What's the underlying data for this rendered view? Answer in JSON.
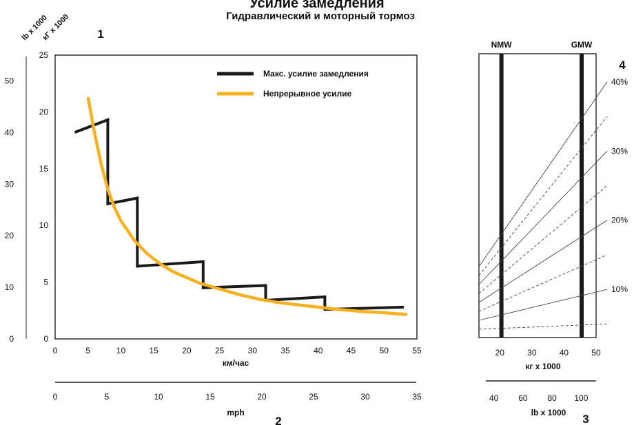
{
  "title": "Усилие замедления",
  "subtitle": "Гидравлический и моторный тормоз",
  "colors": {
    "max": "#1a1a1a",
    "cont": "#f5b120",
    "grade": "#444444"
  },
  "chart_data": [
    {
      "type": "line",
      "callout_top": "1",
      "callout_bottom": "2",
      "y_unit_lb": "lb x 1000",
      "y_unit_kg": "кГ x 1000",
      "xlabel_kmh": "км/час",
      "xlabel_mph": "mph",
      "xlim_kmh": [
        0,
        55
      ],
      "xlim_mph": [
        0,
        35
      ],
      "ylim_kg": [
        0,
        25
      ],
      "ylim_lb": [
        0,
        55
      ],
      "x_ticks_kmh": [
        "0",
        "5",
        "10",
        "15",
        "20",
        "25",
        "30",
        "35",
        "40",
        "45",
        "50",
        "55"
      ],
      "x_ticks_mph": [
        "0",
        "5",
        "10",
        "15",
        "20",
        "25",
        "30",
        "35"
      ],
      "y_ticks_kg": [
        "0",
        "5",
        "10",
        "15",
        "20",
        "25"
      ],
      "y_ticks_lb": [
        "0",
        "10",
        "20",
        "30",
        "40",
        "50"
      ],
      "legend": [
        "Макс. усилие замедления",
        "Непрерывное усилие"
      ],
      "legend_position": "top-right",
      "series": [
        {
          "name": "Макс. усилие замедления",
          "x": [
            3,
            8,
            8,
            12.5,
            12.5,
            22.5,
            22.5,
            32,
            32,
            41,
            41,
            53
          ],
          "y": [
            18.2,
            19.3,
            11.9,
            12.4,
            6.4,
            6.8,
            4.5,
            4.7,
            3.4,
            3.7,
            2.6,
            2.8
          ]
        },
        {
          "name": "Непрерывное усилие",
          "x": [
            5,
            6,
            7,
            8,
            9,
            10,
            12,
            14,
            16,
            18,
            20,
            22,
            25,
            28,
            31,
            34,
            37,
            40,
            43,
            46,
            50,
            53.5
          ],
          "y": [
            21.3,
            18.1,
            15.4,
            13.2,
            11.6,
            10.4,
            8.7,
            7.5,
            6.6,
            5.9,
            5.4,
            4.9,
            4.4,
            3.9,
            3.5,
            3.2,
            3.0,
            2.8,
            2.6,
            2.45,
            2.3,
            2.15
          ]
        }
      ]
    },
    {
      "type": "line",
      "callout_top": "4",
      "callout_bottom": "3",
      "xlabel_kg": "кг x 1000",
      "xlabel_lb": "lb x 1000",
      "x_ticks_kg": [
        "20",
        "30",
        "40",
        "50"
      ],
      "x_ticks_lb": [
        "40",
        "60",
        "80",
        "100"
      ],
      "xlim_kg": [
        13.5,
        50
      ],
      "markers": [
        {
          "label": "NMW",
          "x_kg": 20.5
        },
        {
          "label": "GMW",
          "x_kg": 45.5
        }
      ],
      "grades": [
        {
          "label": "10%",
          "style": "solid"
        },
        {
          "label": "20%",
          "style": "solid"
        },
        {
          "label": "30%",
          "style": "solid"
        },
        {
          "label": "40%",
          "style": "solid"
        },
        {
          "label": "",
          "style": "dashed"
        },
        {
          "label": "",
          "style": "dashed"
        },
        {
          "label": "",
          "style": "dashed"
        },
        {
          "label": "",
          "style": "dashed"
        }
      ]
    }
  ]
}
